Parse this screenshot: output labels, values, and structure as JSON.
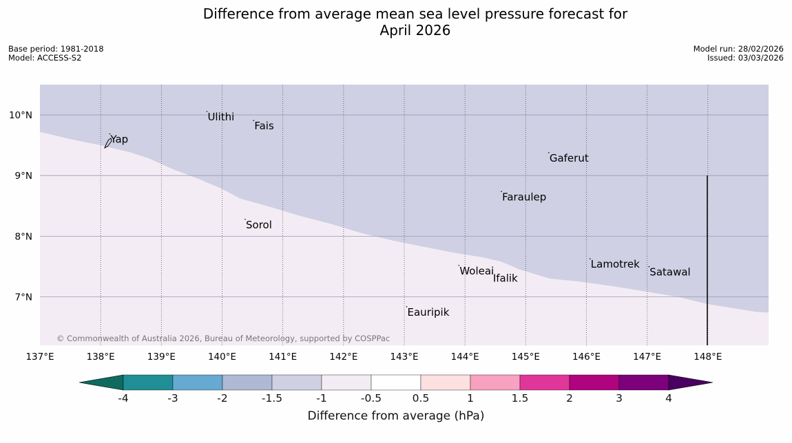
{
  "title": {
    "line1": "Difference from average mean sea level pressure forecast for",
    "line2": "April 2026"
  },
  "meta_left": {
    "base_period": "Base period: 1981-2018",
    "model": "Model: ACCESS-S2"
  },
  "meta_right": {
    "model_run": "Model run: 28/02/2026",
    "issued": "Issued: 03/03/2026"
  },
  "map": {
    "lon_range": [
      137,
      149
    ],
    "lat_range": [
      6.2,
      10.5
    ],
    "lon_ticks": [
      {
        "value": 137,
        "label": "137°E"
      },
      {
        "value": 138,
        "label": "138°E"
      },
      {
        "value": 139,
        "label": "139°E"
      },
      {
        "value": 140,
        "label": "140°E"
      },
      {
        "value": 141,
        "label": "141°E"
      },
      {
        "value": 142,
        "label": "142°E"
      },
      {
        "value": 143,
        "label": "143°E"
      },
      {
        "value": 144,
        "label": "144°E"
      },
      {
        "value": 145,
        "label": "145°E"
      },
      {
        "value": 146,
        "label": "146°E"
      },
      {
        "value": 147,
        "label": "147°E"
      },
      {
        "value": 148,
        "label": "148°E"
      }
    ],
    "lat_ticks": [
      {
        "value": 10,
        "label": "10°N"
      },
      {
        "value": 9,
        "label": "9°N"
      },
      {
        "value": 8,
        "label": "8°N"
      },
      {
        "value": 7,
        "label": "7°N"
      }
    ],
    "boundary": {
      "note": "Boundary between -1.5 to -1 hPa region (north) and -1 to -0.5 hPa region (south)",
      "points": [
        [
          137,
          9.72
        ],
        [
          137.5,
          9.6
        ],
        [
          138,
          9.5
        ],
        [
          138.5,
          9.38
        ],
        [
          138.8,
          9.28
        ],
        [
          139.2,
          9.1
        ],
        [
          139.6,
          8.95
        ],
        [
          140,
          8.78
        ],
        [
          140.3,
          8.62
        ],
        [
          140.8,
          8.48
        ],
        [
          141.3,
          8.33
        ],
        [
          141.8,
          8.2
        ],
        [
          142.3,
          8.05
        ],
        [
          142.8,
          7.93
        ],
        [
          143.2,
          7.85
        ],
        [
          143.8,
          7.73
        ],
        [
          144.3,
          7.65
        ],
        [
          144.6,
          7.58
        ],
        [
          144.9,
          7.45
        ],
        [
          145.4,
          7.3
        ],
        [
          145.9,
          7.25
        ],
        [
          146.4,
          7.18
        ],
        [
          146.9,
          7.1
        ],
        [
          147.5,
          7.0
        ],
        [
          148,
          6.88
        ],
        [
          148.5,
          6.8
        ],
        [
          148.8,
          6.75
        ],
        [
          149,
          6.74
        ]
      ]
    },
    "upper_color": "#cfd0e3",
    "lower_color": "#f4ecf4",
    "places": [
      {
        "name": "Ulithi",
        "lon": 139.75,
        "lat": 9.91
      },
      {
        "name": "Fais",
        "lon": 140.52,
        "lat": 9.76
      },
      {
        "name": "Yap",
        "lon": 138.15,
        "lat": 9.54
      },
      {
        "name": "Gaferut",
        "lon": 145.38,
        "lat": 9.23
      },
      {
        "name": "Faraulep",
        "lon": 144.6,
        "lat": 8.59
      },
      {
        "name": "Sorol",
        "lon": 140.38,
        "lat": 8.13
      },
      {
        "name": "Lamotrek",
        "lon": 146.06,
        "lat": 7.48
      },
      {
        "name": "Woleai",
        "lon": 143.9,
        "lat": 7.37
      },
      {
        "name": "Ifalik",
        "lon": 144.45,
        "lat": 7.25
      },
      {
        "name": "Satawal",
        "lon": 147.03,
        "lat": 7.35
      },
      {
        "name": "Eauripik",
        "lon": 143.04,
        "lat": 6.69
      }
    ],
    "copyright": "© Commonwealth of Australia 2026, Bureau of Meteorology, supported by COSPPac"
  },
  "legend": {
    "title": "Difference from average (hPa)",
    "colors": [
      "#0e6b5e",
      "#1f8f95",
      "#66a9d1",
      "#aeb9d3",
      "#cfd0e3",
      "#f4ecf4",
      "#ffffff",
      "#fde0e0",
      "#f8a1c0",
      "#e0369a",
      "#b0037f",
      "#7d017b",
      "#4a0060"
    ],
    "ticks": [
      "-4",
      "-3",
      "-2",
      "-1.5",
      "-1",
      "-0.5",
      "0.5",
      "1",
      "1.5",
      "2",
      "3",
      "4"
    ]
  }
}
